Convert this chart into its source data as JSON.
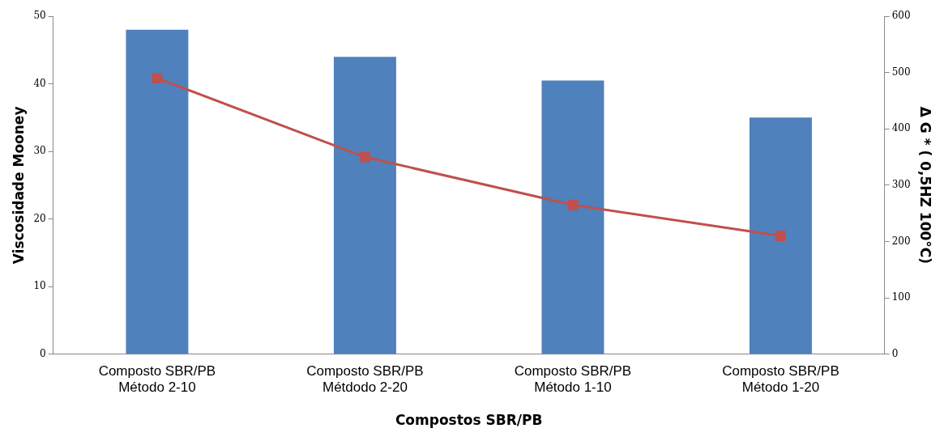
{
  "chart_data": {
    "type": "bar",
    "xlabel": "Compostos SBR/PB",
    "ylabel": "Viscosidade Mooney",
    "y2label": "Δ G * ( 0,5HZ 100°C)",
    "categories": [
      "Composto SBR/PB\nMétodo 2-10",
      "Composto SBR/PB\nMétdodo 2-20",
      "Composto SBR/PB\nMétodo 1-10",
      "Composto SBR/PB\nMétodo 1-20"
    ],
    "series": [
      {
        "color": "#4f81bd",
        "values": [
          48,
          44,
          40.5,
          35
        ]
      },
      {
        "type": "line",
        "axis": "y2",
        "color": "#c0504d",
        "marker": "square",
        "values": [
          490,
          350,
          265,
          210
        ]
      }
    ],
    "ylim": [
      0,
      50
    ],
    "yticks": [
      0,
      10,
      20,
      30,
      40,
      50
    ],
    "y2lim": [
      0,
      600
    ],
    "y2ticks": [
      0,
      100,
      200,
      300,
      400,
      500,
      600
    ],
    "grid": false,
    "legend": false
  }
}
